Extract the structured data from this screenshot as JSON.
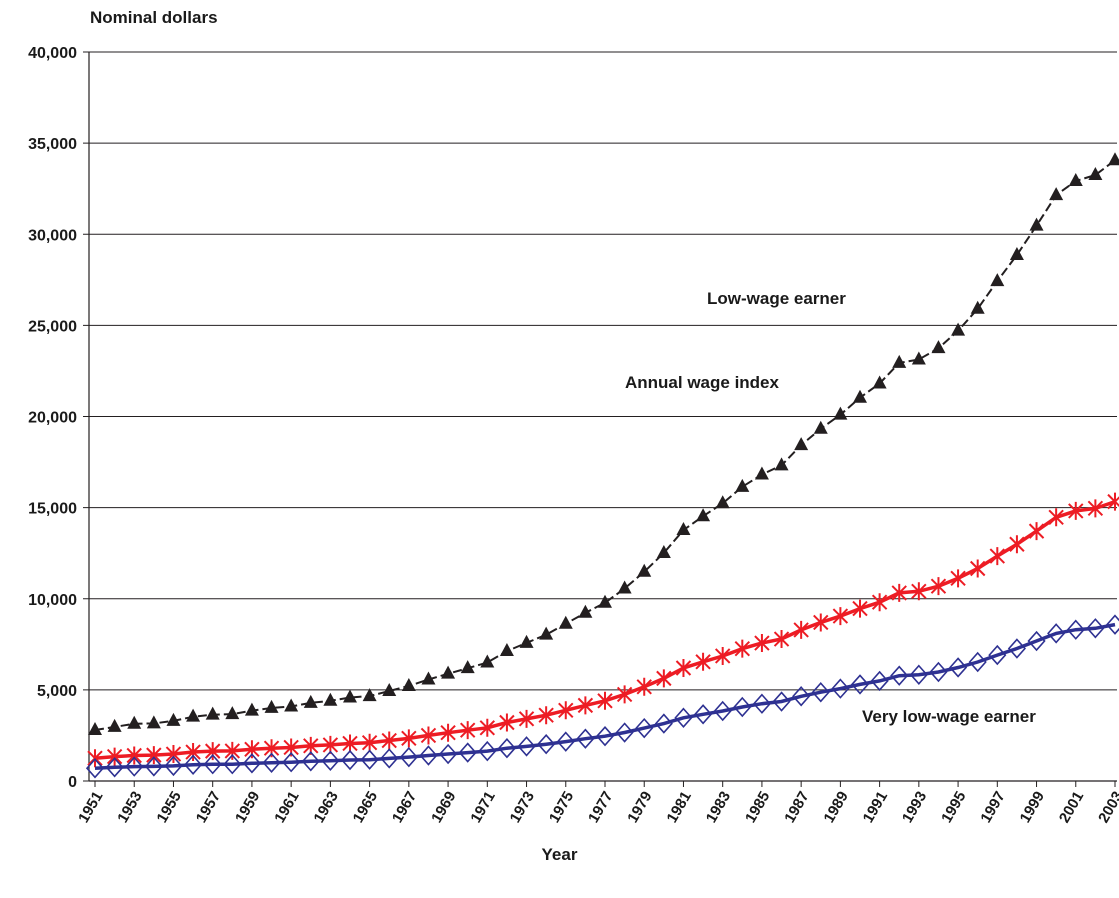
{
  "chart_data": {
    "type": "line",
    "ylabel": "Nominal dollars",
    "xlabel": "Year",
    "ylim": [
      0,
      40000
    ],
    "yticks": [
      "0",
      "5,000",
      "10,000",
      "15,000",
      "20,000",
      "25,000",
      "30,000",
      "35,000",
      "40,000"
    ],
    "ytick_values": [
      0,
      5000,
      10000,
      15000,
      20000,
      25000,
      30000,
      35000,
      40000
    ],
    "xticks": [
      "1951",
      "1953",
      "1955",
      "1957",
      "1959",
      "1961",
      "1963",
      "1965",
      "1967",
      "1969",
      "1971",
      "1973",
      "1975",
      "1977",
      "1979",
      "1981",
      "1983",
      "1985",
      "1987",
      "1989",
      "1991",
      "1993",
      "1995",
      "1997",
      "1999",
      "2001",
      "2003"
    ],
    "grid": "horizontal",
    "x": [
      1951,
      1952,
      1953,
      1954,
      1955,
      1956,
      1957,
      1958,
      1959,
      1960,
      1961,
      1962,
      1963,
      1964,
      1965,
      1966,
      1967,
      1968,
      1969,
      1970,
      1971,
      1972,
      1973,
      1974,
      1975,
      1976,
      1977,
      1978,
      1979,
      1980,
      1981,
      1982,
      1983,
      1984,
      1985,
      1986,
      1987,
      1988,
      1989,
      1990,
      1991,
      1992,
      1993,
      1994,
      1995,
      1996,
      1997,
      1998,
      1999,
      2000,
      2001,
      2002,
      2003
    ],
    "series": [
      {
        "name": "Annual wage index",
        "color": "#231f20",
        "marker": "triangle",
        "values": [
          2800,
          2970,
          3140,
          3160,
          3300,
          3530,
          3640,
          3670,
          3860,
          4010,
          4090,
          4290,
          4400,
          4580,
          4660,
          4940,
          5210,
          5570,
          5890,
          6190,
          6500,
          7130,
          7580,
          8030,
          8630,
          9230,
          9780,
          10560,
          11480,
          12510,
          13770,
          14530,
          15240,
          16140,
          16820,
          17320,
          18430,
          19330,
          20100,
          21030,
          21810,
          22940,
          23130,
          23750,
          24710,
          25910,
          27430,
          28860,
          30470,
          32150,
          32920,
          33250,
          34060
        ]
      },
      {
        "name": "Low-wage earner",
        "color": "#ed1c24",
        "marker": "asterisk",
        "values": [
          1250,
          1340,
          1400,
          1420,
          1480,
          1590,
          1640,
          1650,
          1740,
          1800,
          1840,
          1930,
          1980,
          2060,
          2100,
          2220,
          2340,
          2500,
          2650,
          2790,
          2920,
          3210,
          3410,
          3610,
          3880,
          4150,
          4400,
          4750,
          5170,
          5630,
          6200,
          6540,
          6860,
          7260,
          7570,
          7790,
          8290,
          8700,
          9050,
          9460,
          9810,
          10320,
          10410,
          10690,
          11120,
          11660,
          12340,
          12990,
          13710,
          14470,
          14820,
          14960,
          15330
        ]
      },
      {
        "name": "Very low-wage earner",
        "color": "#2e3192",
        "marker": "diamond",
        "values": [
          700,
          750,
          790,
          800,
          830,
          890,
          920,
          920,
          970,
          1000,
          1030,
          1080,
          1110,
          1150,
          1170,
          1240,
          1310,
          1400,
          1480,
          1560,
          1640,
          1800,
          1900,
          2020,
          2160,
          2320,
          2460,
          2660,
          2900,
          3150,
          3470,
          3660,
          3840,
          4060,
          4240,
          4360,
          4650,
          4870,
          5070,
          5300,
          5490,
          5780,
          5830,
          5980,
          6230,
          6530,
          6910,
          7270,
          7680,
          8100,
          8300,
          8380,
          8580
        ]
      }
    ],
    "annotations": [
      {
        "text": "Annual wage index",
        "series": 0
      },
      {
        "text": "Low-wage earner",
        "series": 1
      },
      {
        "text": "Very low-wage earner",
        "series": 2
      }
    ]
  }
}
